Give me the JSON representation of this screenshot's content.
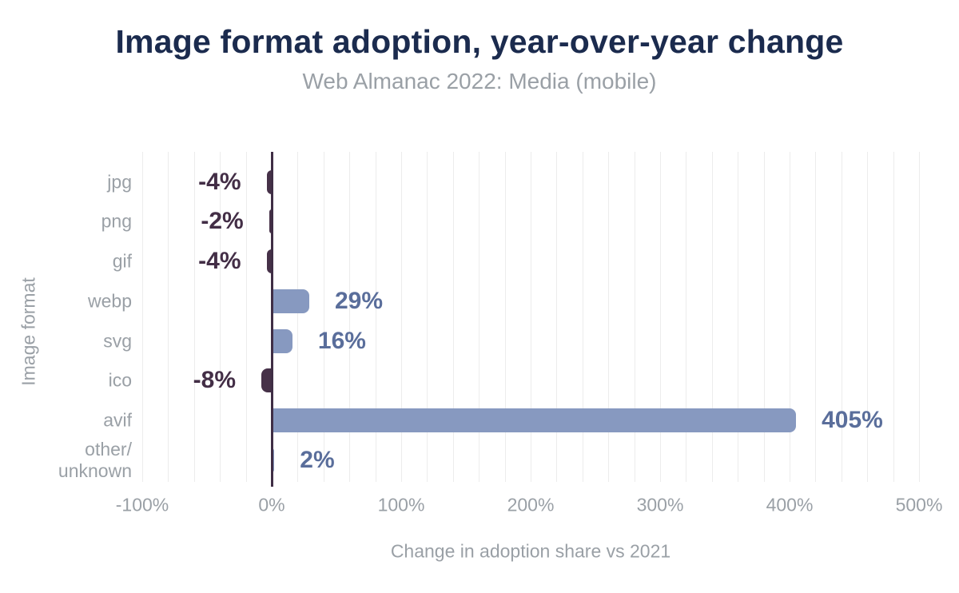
{
  "chart_data": {
    "type": "bar",
    "orientation": "horizontal",
    "title": "Image format adoption, year-over-year change",
    "subtitle": "Web Almanac 2022: Media (mobile)",
    "xlabel": "Change in adoption share vs 2021",
    "ylabel": "Image format",
    "categories": [
      "jpg",
      "png",
      "gif",
      "webp",
      "svg",
      "ico",
      "avif",
      "other/\nunknown"
    ],
    "values": [
      -4,
      -2,
      -4,
      29,
      16,
      -8,
      405,
      2
    ],
    "data_labels": [
      "-4%",
      "-2%",
      "-4%",
      "29%",
      "16%",
      "-8%",
      "405%",
      "2%"
    ],
    "xlim": [
      -100,
      500
    ],
    "xticks": [
      -100,
      0,
      100,
      200,
      300,
      400,
      500
    ],
    "xtick_labels": [
      "-100%",
      "0%",
      "100%",
      "200%",
      "300%",
      "400%",
      "500%"
    ],
    "grid": "vertical",
    "grid_step_pct": 20,
    "legend": "none",
    "colors": {
      "title": "#1b2b4e",
      "muted_text": "#9aa0a6",
      "positive_bar": "#8799c0",
      "negative_bar": "#463148",
      "positive_label": "#5a6e9b",
      "negative_label": "#432e46",
      "axis_line": "#3f2e45",
      "gridline": "#ececec",
      "background": "#ffffff"
    }
  }
}
